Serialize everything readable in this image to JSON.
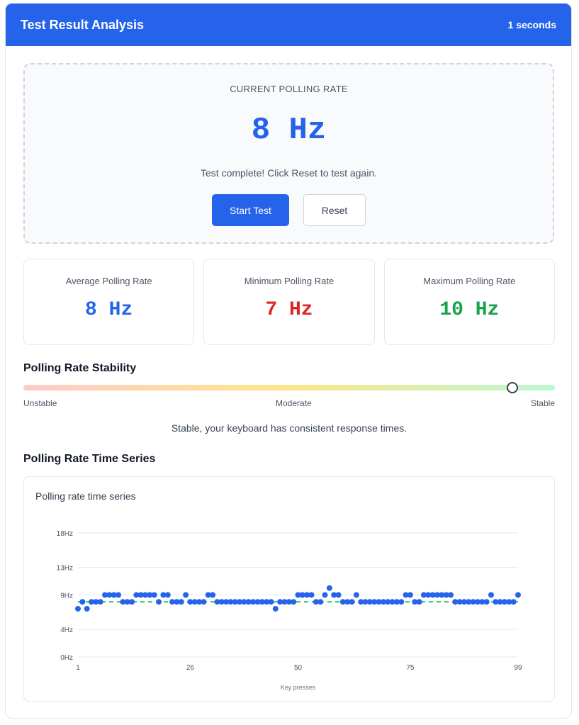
{
  "header": {
    "title": "Test Result Analysis",
    "elapsed": "1 seconds"
  },
  "current": {
    "label": "CURRENT POLLING RATE",
    "value": "8 Hz",
    "message": "Test complete! Click Reset to test again.",
    "start_label": "Start Test",
    "reset_label": "Reset"
  },
  "stats": [
    {
      "label": "Average Polling Rate",
      "value": "8 Hz",
      "color": "#2563eb"
    },
    {
      "label": "Minimum Polling Rate",
      "value": "7 Hz",
      "color": "#dc2626"
    },
    {
      "label": "Maximum Polling Rate",
      "value": "10 Hz",
      "color": "#16a34a"
    }
  ],
  "stability": {
    "title": "Polling Rate Stability",
    "level": 0.92,
    "labels": {
      "low": "Unstable",
      "mid": "Moderate",
      "high": "Stable"
    },
    "message": "Stable, your keyboard has consistent response times."
  },
  "timeseries": {
    "title": "Polling Rate Time Series"
  },
  "chart_data": {
    "type": "scatter",
    "title": "Polling rate time series",
    "xlabel": "Key presses",
    "ylabel": "",
    "xlim": [
      1,
      99
    ],
    "ylim": [
      0,
      18
    ],
    "x_ticks": [
      1,
      26,
      50,
      75,
      99
    ],
    "y_ticks": [
      0,
      4,
      9,
      13,
      18
    ],
    "y_tick_labels": [
      "0Hz",
      "4Hz",
      "9Hz",
      "13Hz",
      "18Hz"
    ],
    "average": 8,
    "grid": true,
    "legend": "none",
    "colors": {
      "points": "#2563eb",
      "average_line": "#22c55e"
    },
    "values": [
      7,
      8,
      7,
      8,
      8,
      8,
      9,
      9,
      9,
      9,
      8,
      8,
      8,
      9,
      9,
      9,
      9,
      9,
      8,
      9,
      9,
      8,
      8,
      8,
      9,
      8,
      8,
      8,
      8,
      9,
      9,
      8,
      8,
      8,
      8,
      8,
      8,
      8,
      8,
      8,
      8,
      8,
      8,
      8,
      7,
      8,
      8,
      8,
      8,
      9,
      9,
      9,
      9,
      8,
      8,
      9,
      10,
      9,
      9,
      8,
      8,
      8,
      9,
      8,
      8,
      8,
      8,
      8,
      8,
      8,
      8,
      8,
      8,
      9,
      9,
      8,
      8,
      9,
      9,
      9,
      9,
      9,
      9,
      9,
      8,
      8,
      8,
      8,
      8,
      8,
      8,
      8,
      9,
      8,
      8,
      8,
      8,
      8,
      9
    ]
  }
}
